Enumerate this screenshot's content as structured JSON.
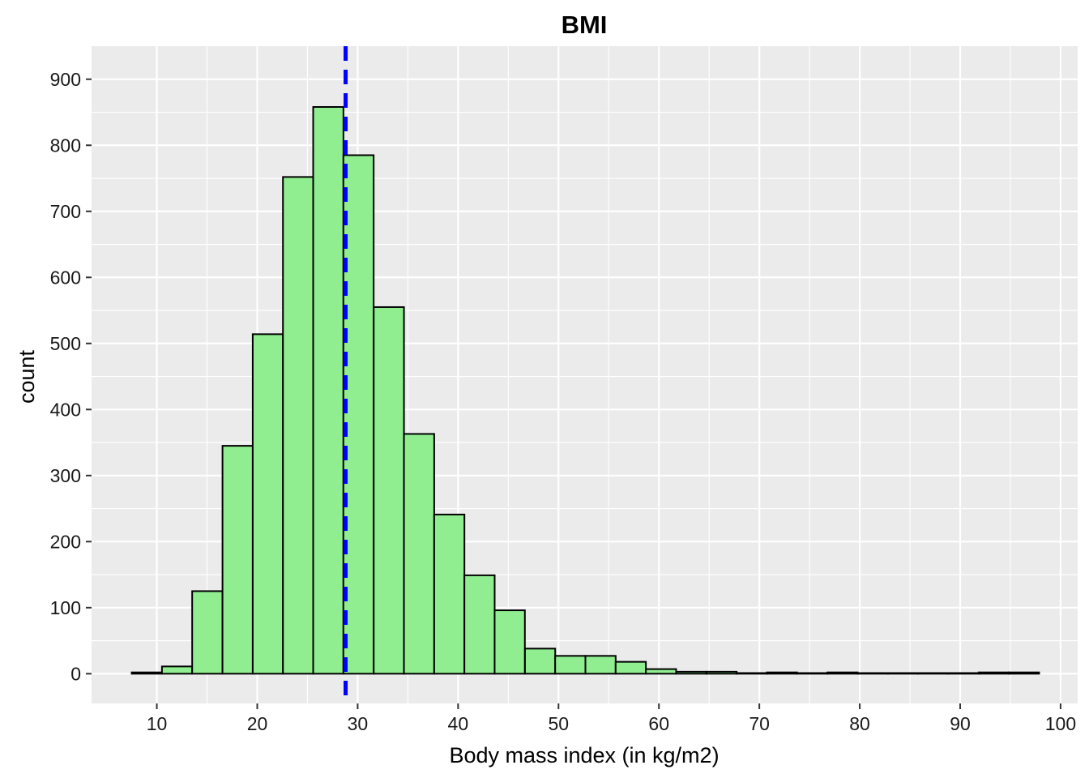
{
  "chart_data": {
    "type": "bar",
    "title": "BMI",
    "xlabel": "Body mass index (in kg/m2)",
    "ylabel": "count",
    "xlim": [
      3.5,
      101.7
    ],
    "ylim": [
      -45,
      950
    ],
    "x_ticks": [
      10,
      20,
      30,
      40,
      50,
      60,
      70,
      80,
      90,
      100
    ],
    "y_ticks": [
      0,
      100,
      200,
      300,
      400,
      500,
      600,
      700,
      800,
      900
    ],
    "bin_width": 3.012,
    "bins": [
      {
        "x0": 7.5,
        "count": 2
      },
      {
        "x0": 10.51,
        "count": 11
      },
      {
        "x0": 13.52,
        "count": 125
      },
      {
        "x0": 16.54,
        "count": 345
      },
      {
        "x0": 19.55,
        "count": 514
      },
      {
        "x0": 22.56,
        "count": 752
      },
      {
        "x0": 25.57,
        "count": 858
      },
      {
        "x0": 28.58,
        "count": 785
      },
      {
        "x0": 31.6,
        "count": 555
      },
      {
        "x0": 34.61,
        "count": 363
      },
      {
        "x0": 37.62,
        "count": 241
      },
      {
        "x0": 40.63,
        "count": 149
      },
      {
        "x0": 43.64,
        "count": 96
      },
      {
        "x0": 46.66,
        "count": 38
      },
      {
        "x0": 49.67,
        "count": 27
      },
      {
        "x0": 52.68,
        "count": 27
      },
      {
        "x0": 55.69,
        "count": 18
      },
      {
        "x0": 58.7,
        "count": 7
      },
      {
        "x0": 61.72,
        "count": 3
      },
      {
        "x0": 64.73,
        "count": 3
      },
      {
        "x0": 67.74,
        "count": 1
      },
      {
        "x0": 70.75,
        "count": 2
      },
      {
        "x0": 73.76,
        "count": 1
      },
      {
        "x0": 76.78,
        "count": 2
      },
      {
        "x0": 79.79,
        "count": 1
      },
      {
        "x0": 82.8,
        "count": 1
      },
      {
        "x0": 85.81,
        "count": 1
      },
      {
        "x0": 88.82,
        "count": 1
      },
      {
        "x0": 91.84,
        "count": 2
      },
      {
        "x0": 94.85,
        "count": 2
      }
    ],
    "mean_line": {
      "x": 28.8,
      "style": "dashed",
      "color": "#0000ff"
    },
    "bar_fill": "#90ee90",
    "bar_stroke": "#000000",
    "panel_background": "#ebebeb",
    "grid": true,
    "legend": "none"
  }
}
